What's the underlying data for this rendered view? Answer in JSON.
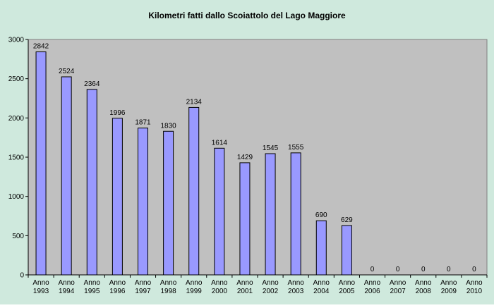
{
  "chart_data": {
    "type": "bar",
    "title": "Kilometri fatti dallo Scoiattolo del Lago Maggiore",
    "xlabel": "",
    "ylabel": "",
    "ylim": [
      0,
      3000
    ],
    "yticks": [
      0,
      500,
      1000,
      1500,
      2000,
      2500,
      3000
    ],
    "grid": false,
    "legend": "none",
    "categories": [
      [
        "Anno",
        "1993"
      ],
      [
        "Anno",
        "1994"
      ],
      [
        "Anno",
        "1995"
      ],
      [
        "Anno",
        "1996"
      ],
      [
        "Anno",
        "1997"
      ],
      [
        "Anno",
        "1998"
      ],
      [
        "Anno",
        "1999"
      ],
      [
        "Anno",
        "2000"
      ],
      [
        "Anno",
        "2001"
      ],
      [
        "Anno",
        "2002"
      ],
      [
        "Anno",
        "2003"
      ],
      [
        "Anno",
        "2004"
      ],
      [
        "Anno",
        "2005"
      ],
      [
        "Anno",
        "2006"
      ],
      [
        "Anno",
        "2007"
      ],
      [
        "Anno",
        "2008"
      ],
      [
        "Anno",
        "2009"
      ],
      [
        "Anno",
        "2010"
      ]
    ],
    "values": [
      2842,
      2524,
      2364,
      1996,
      1871,
      1830,
      2134,
      1614,
      1429,
      1545,
      1555,
      690,
      629,
      0,
      0,
      0,
      0,
      0
    ],
    "colors": {
      "background": "#cfe9dd",
      "plot_area": "#c0c0c0",
      "bar_fill": "#9999ff",
      "bar_stroke": "#000000",
      "text": "#000000"
    }
  }
}
